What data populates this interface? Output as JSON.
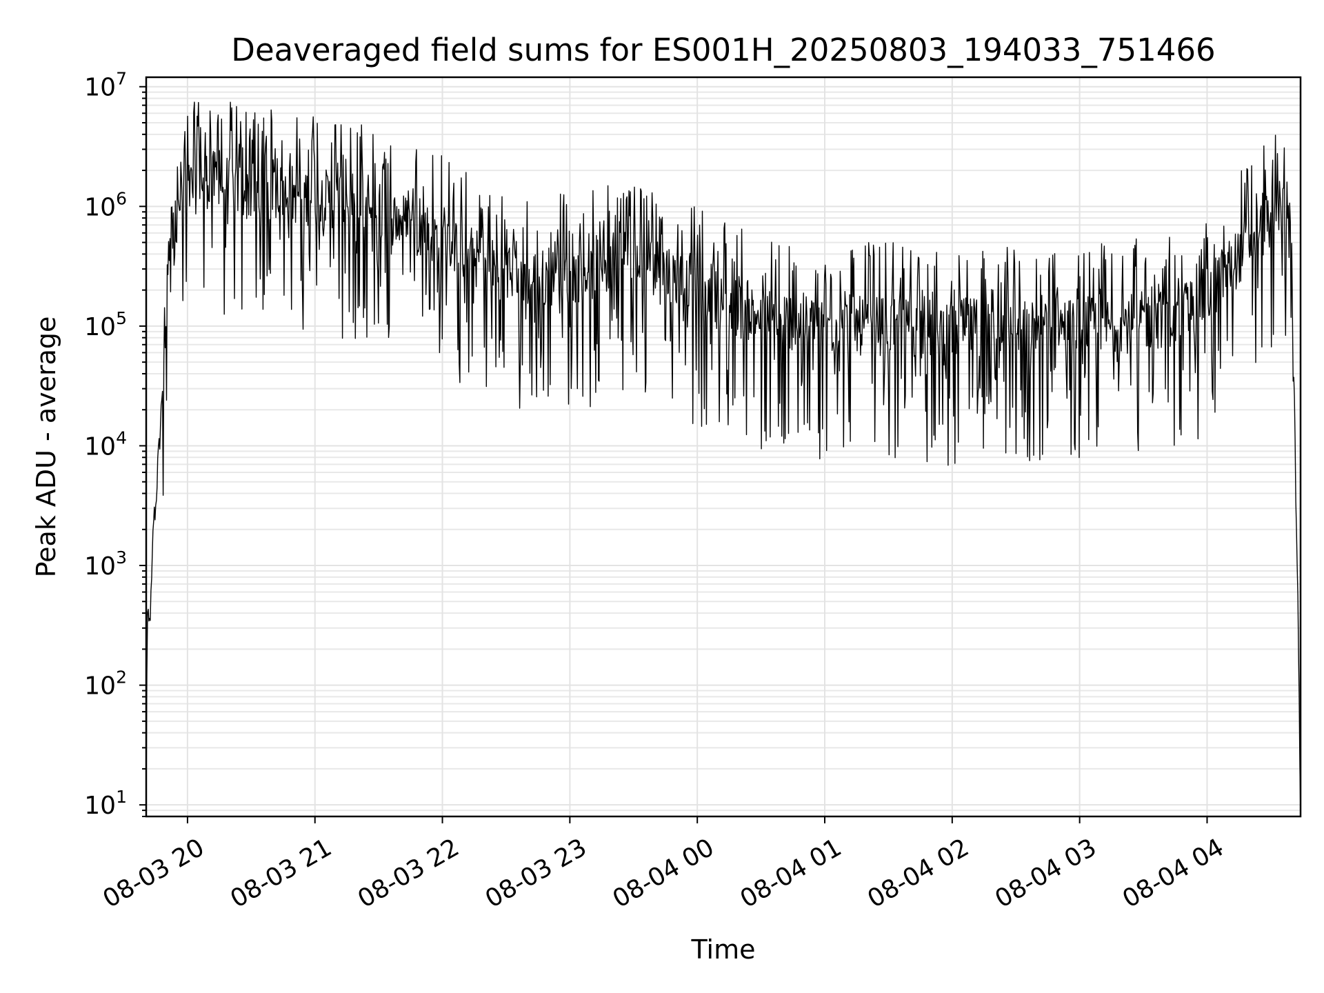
{
  "chart_data": {
    "type": "line",
    "title": "Deaveraged field sums for ES001H_20250803_194033_751466",
    "xlabel": "Time",
    "ylabel": "Peak ADU - average",
    "yscale": "log",
    "ylim": [
      8,
      12000000
    ],
    "xlim": [
      "2025-08-03 19:40:33",
      "2025-08-04 04:44:00"
    ],
    "grid": true,
    "grid_minor": true,
    "line_color": "#000000",
    "x_ticks": [
      {
        "value": "2025-08-03 20:00",
        "label": "08-03 20"
      },
      {
        "value": "2025-08-03 21:00",
        "label": "08-03 21"
      },
      {
        "value": "2025-08-03 22:00",
        "label": "08-03 22"
      },
      {
        "value": "2025-08-03 23:00",
        "label": "08-03 23"
      },
      {
        "value": "2025-08-04 00:00",
        "label": "08-04 00"
      },
      {
        "value": "2025-08-04 01:00",
        "label": "08-04 01"
      },
      {
        "value": "2025-08-04 02:00",
        "label": "08-04 02"
      },
      {
        "value": "2025-08-04 03:00",
        "label": "08-04 03"
      },
      {
        "value": "2025-08-04 04:00",
        "label": "08-04 04"
      }
    ],
    "y_ticks": [
      {
        "value": 10,
        "base": "10",
        "exp": "1"
      },
      {
        "value": 100,
        "base": "10",
        "exp": "2"
      },
      {
        "value": 1000,
        "base": "10",
        "exp": "3"
      },
      {
        "value": 10000,
        "base": "10",
        "exp": "4"
      },
      {
        "value": 100000,
        "base": "10",
        "exp": "5"
      },
      {
        "value": 1000000,
        "base": "10",
        "exp": "6"
      },
      {
        "value": 10000000,
        "base": "10",
        "exp": "7"
      }
    ],
    "series": [
      {
        "x": [
          "2025-08-03 19:40:33",
          "2025-08-03 19:41",
          "2025-08-03 19:42",
          "2025-08-03 19:43",
          "2025-08-03 19:44",
          "2025-08-03 19:45",
          "2025-08-03 19:46",
          "2025-08-03 19:47",
          "2025-08-03 19:48",
          "2025-08-03 19:49",
          "2025-08-03 19:50",
          "2025-08-03 19:51",
          "2025-08-03 19:52",
          "2025-08-03 19:53",
          "2025-08-03 19:55",
          "2025-08-03 19:57",
          "2025-08-03 20:00",
          "2025-08-03 20:05",
          "2025-08-03 20:10",
          "2025-08-03 20:20",
          "2025-08-03 20:30",
          "2025-08-03 20:45",
          "2025-08-03 21:00",
          "2025-08-03 21:15",
          "2025-08-03 21:30",
          "2025-08-03 21:45",
          "2025-08-03 22:00",
          "2025-08-03 22:10",
          "2025-08-03 22:20",
          "2025-08-03 22:30",
          "2025-08-03 22:40",
          "2025-08-03 22:50",
          "2025-08-03 23:00",
          "2025-08-03 23:15",
          "2025-08-03 23:30",
          "2025-08-03 23:45",
          "2025-08-04 00:00",
          "2025-08-04 00:15",
          "2025-08-04 00:30",
          "2025-08-04 00:45",
          "2025-08-04 01:00",
          "2025-08-04 01:15",
          "2025-08-04 01:30",
          "2025-08-04 01:45",
          "2025-08-04 02:00",
          "2025-08-04 02:15",
          "2025-08-04 02:30",
          "2025-08-04 02:45",
          "2025-08-04 03:00",
          "2025-08-04 03:15",
          "2025-08-04 03:30",
          "2025-08-04 03:45",
          "2025-08-04 04:00",
          "2025-08-04 04:10",
          "2025-08-04 04:20",
          "2025-08-04 04:30",
          "2025-08-04 04:34",
          "2025-08-04 04:37",
          "2025-08-04 04:39",
          "2025-08-04 04:41",
          "2025-08-04 04:42",
          "2025-08-04 04:43",
          "2025-08-04 04:44"
        ],
        "y": [
          10,
          400,
          300,
          600,
          2500,
          3000,
          7000,
          12000,
          28000,
          60000,
          110000,
          200000,
          300000,
          500000,
          700000,
          1000000,
          1300000,
          1600000,
          1700000,
          1500000,
          1300000,
          1300000,
          1200000,
          1100000,
          900000,
          700000,
          550000,
          420000,
          330000,
          280000,
          250000,
          250000,
          270000,
          300000,
          350000,
          300000,
          200000,
          150000,
          120000,
          110000,
          100000,
          100000,
          100000,
          95000,
          95000,
          100000,
          100000,
          100000,
          100000,
          100000,
          110000,
          120000,
          180000,
          300000,
          500000,
          800000,
          1000000,
          900000,
          400000,
          30000,
          2000,
          300,
          8
        ],
        "trace_range": [
          [
            1700,
            500
          ],
          [
            3000,
            1200
          ],
          [
            500000,
            5000000
          ],
          [
            8000,
            200000
          ]
        ]
      }
    ]
  }
}
